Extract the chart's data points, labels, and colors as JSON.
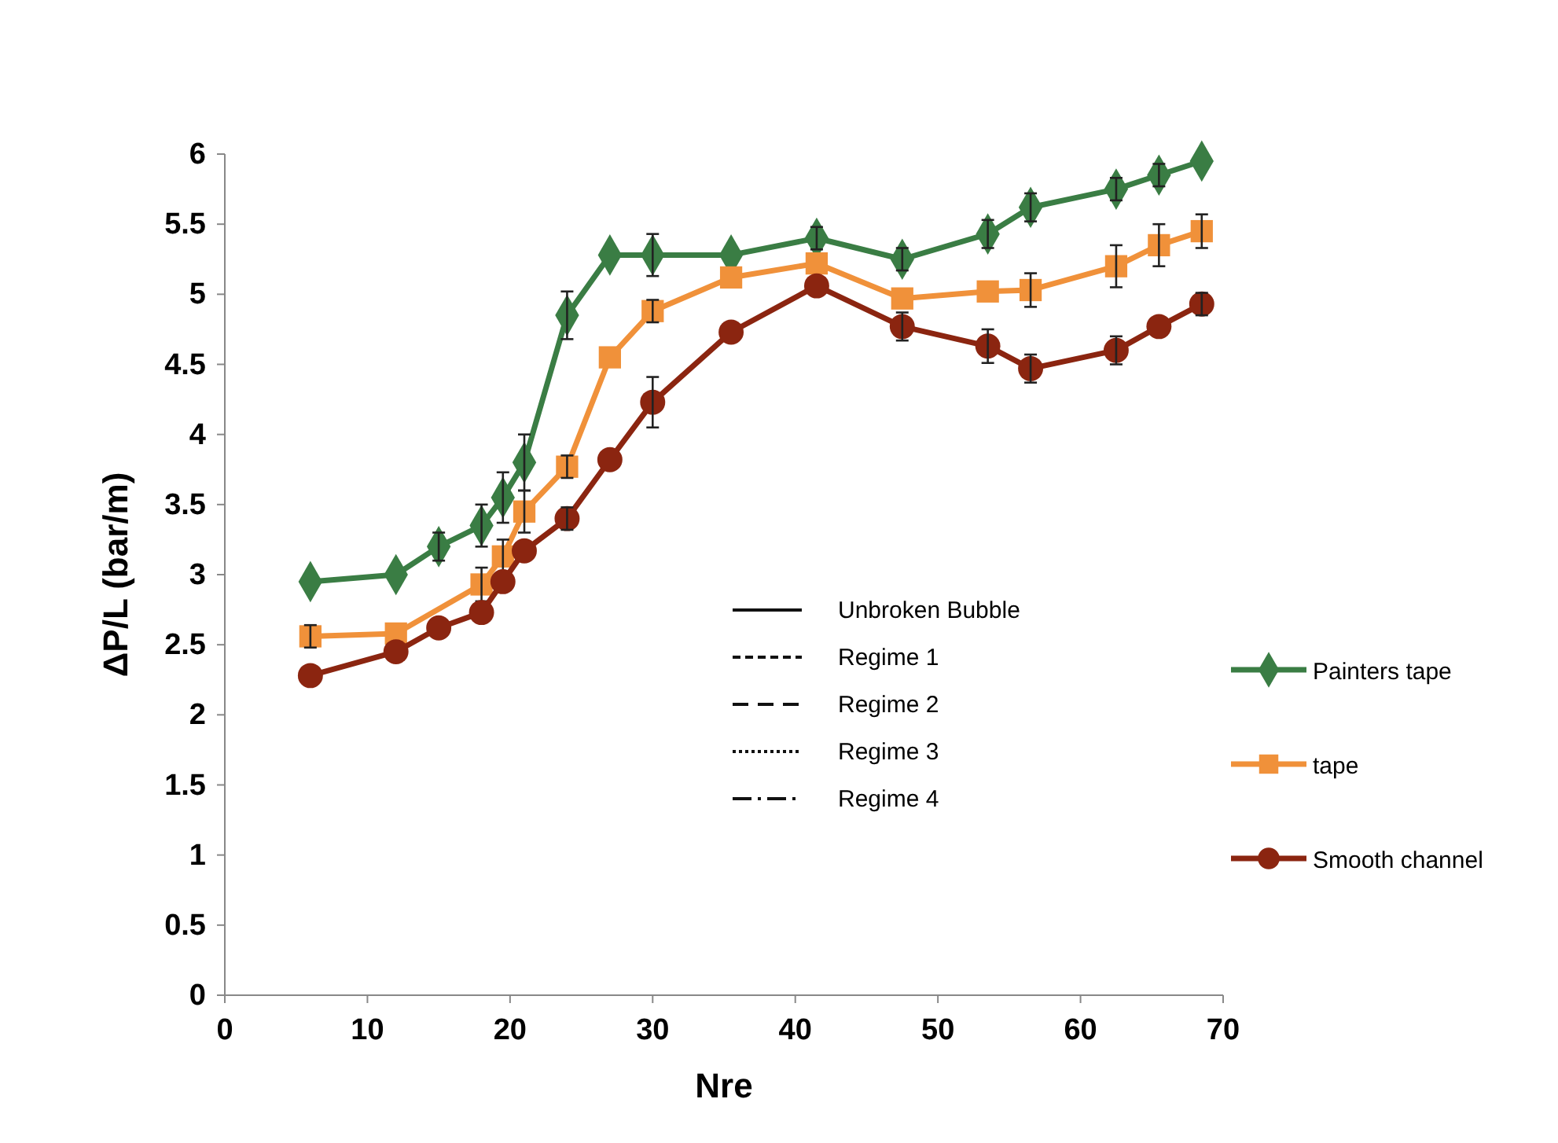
{
  "chart_data": {
    "type": "line",
    "xlabel": "Nre",
    "ylabel": "ΔP/L (bar/m)",
    "x": [
      6,
      12,
      15,
      18,
      19.5,
      21,
      24,
      27,
      30,
      35.5,
      41.5,
      47.5,
      53.5,
      56.5,
      62.5,
      65.5,
      68.5
    ],
    "series": [
      {
        "name": "Painters tape",
        "color": "#3a7d44",
        "marker": "diamond",
        "values": [
          2.95,
          3.0,
          3.2,
          3.35,
          3.55,
          3.8,
          4.85,
          5.28,
          5.28,
          5.28,
          5.4,
          5.25,
          5.43,
          5.62,
          5.75,
          5.85,
          5.95
        ],
        "errors": [
          null,
          null,
          0.1,
          0.15,
          0.18,
          0.2,
          0.17,
          null,
          0.15,
          null,
          0.08,
          0.08,
          0.1,
          0.1,
          0.08,
          0.08,
          null
        ]
      },
      {
        "name": "tape",
        "color": "#f0913a",
        "marker": "square",
        "values": [
          2.56,
          2.58,
          null,
          2.93,
          3.13,
          3.45,
          3.77,
          4.55,
          4.88,
          5.12,
          5.22,
          4.97,
          5.02,
          5.03,
          5.2,
          5.35,
          5.45
        ],
        "errors": [
          0.08,
          null,
          null,
          0.12,
          0.12,
          0.15,
          0.08,
          null,
          0.08,
          null,
          null,
          null,
          null,
          0.12,
          0.15,
          0.15,
          0.12
        ]
      },
      {
        "name": "Smooth channel",
        "color": "#8b2510",
        "marker": "circle",
        "values": [
          2.28,
          2.45,
          2.62,
          2.73,
          2.95,
          3.17,
          3.4,
          3.82,
          4.23,
          4.73,
          5.06,
          4.77,
          4.63,
          4.47,
          4.6,
          4.77,
          4.93
        ],
        "errors": [
          null,
          null,
          null,
          null,
          null,
          null,
          0.08,
          null,
          0.18,
          null,
          null,
          0.1,
          0.12,
          0.1,
          0.1,
          null,
          0.08
        ]
      }
    ],
    "xlim": [
      0,
      70
    ],
    "xticks": [
      0,
      10,
      20,
      30,
      40,
      50,
      60,
      70
    ],
    "ylim": [
      0,
      6
    ],
    "yticks": [
      0,
      0.5,
      1,
      1.5,
      2,
      2.5,
      3,
      3.5,
      4,
      4.5,
      5,
      5.5,
      6
    ],
    "legend": "right",
    "grid": false,
    "annotations": [
      "Unbroken Bubble",
      "Regime 1",
      "Regime 2",
      "Regime 3",
      "Regime 4"
    ]
  }
}
